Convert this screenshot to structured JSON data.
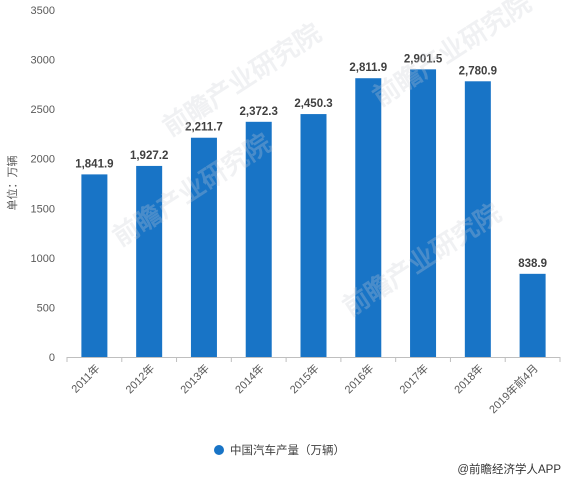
{
  "chart_data": {
    "type": "bar",
    "categories": [
      "2011年",
      "2012年",
      "2013年",
      "2014年",
      "2015年",
      "2016年",
      "2017年",
      "2018年",
      "2019年前4月"
    ],
    "values": [
      1841.9,
      1927.2,
      2211.7,
      2372.3,
      2450.3,
      2811.9,
      2901.5,
      2780.9,
      838.9
    ],
    "value_labels": [
      "1,841.9",
      "1,927.2",
      "2,211.7",
      "2,372.3",
      "2,450.3",
      "2,811.9",
      "2,901.5",
      "2,780.9",
      "838.9"
    ],
    "series": [
      {
        "name": "中国汽车产量（万辆）",
        "color": "#1874c6"
      }
    ],
    "ylabel": "单位：万辆",
    "ylim": [
      0,
      3500
    ],
    "yticks": [
      0,
      500,
      1000,
      1500,
      2000,
      2500,
      3000,
      3500
    ],
    "grid": false,
    "legend_position": "bottom"
  },
  "source": "@前瞻经济学人APP",
  "watermarks": [
    "前瞻产业研究院",
    "前瞻产业研究院",
    "前瞻产业研究院",
    "前瞻产业研究院"
  ]
}
